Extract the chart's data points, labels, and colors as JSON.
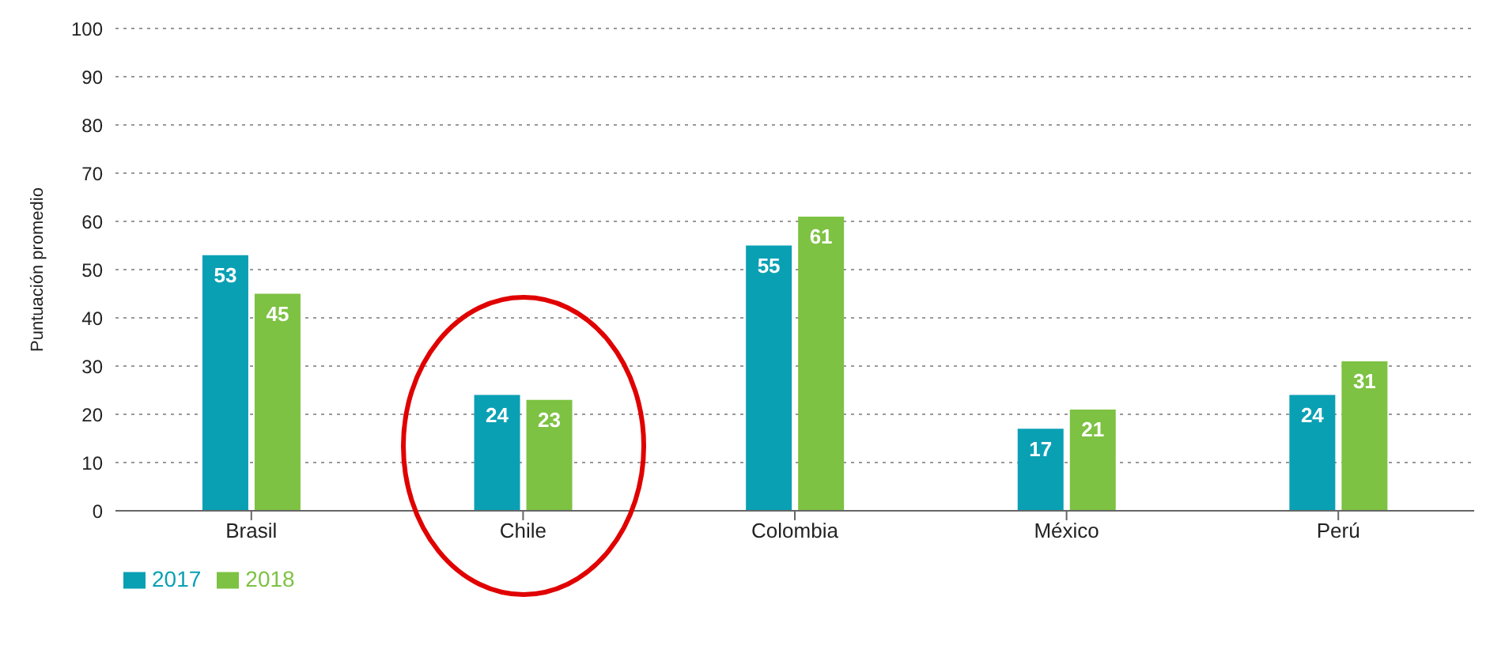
{
  "chart_data": {
    "type": "bar",
    "ylabel": "Puntuación promedio",
    "categories": [
      "Brasil",
      "Chile",
      "Colombia",
      "México",
      "Perú"
    ],
    "series": [
      {
        "name": "2017",
        "color": "#0aa0b4",
        "values": [
          53,
          24,
          55,
          17,
          24
        ]
      },
      {
        "name": "2018",
        "color": "#7dc242",
        "values": [
          45,
          23,
          61,
          21,
          31
        ]
      }
    ],
    "ylim": [
      0,
      100
    ],
    "yticks": [
      0,
      10,
      20,
      30,
      40,
      50,
      60,
      70,
      80,
      90,
      100
    ],
    "grid": "y",
    "legend": "bottom left",
    "data_labels": true
  }
}
